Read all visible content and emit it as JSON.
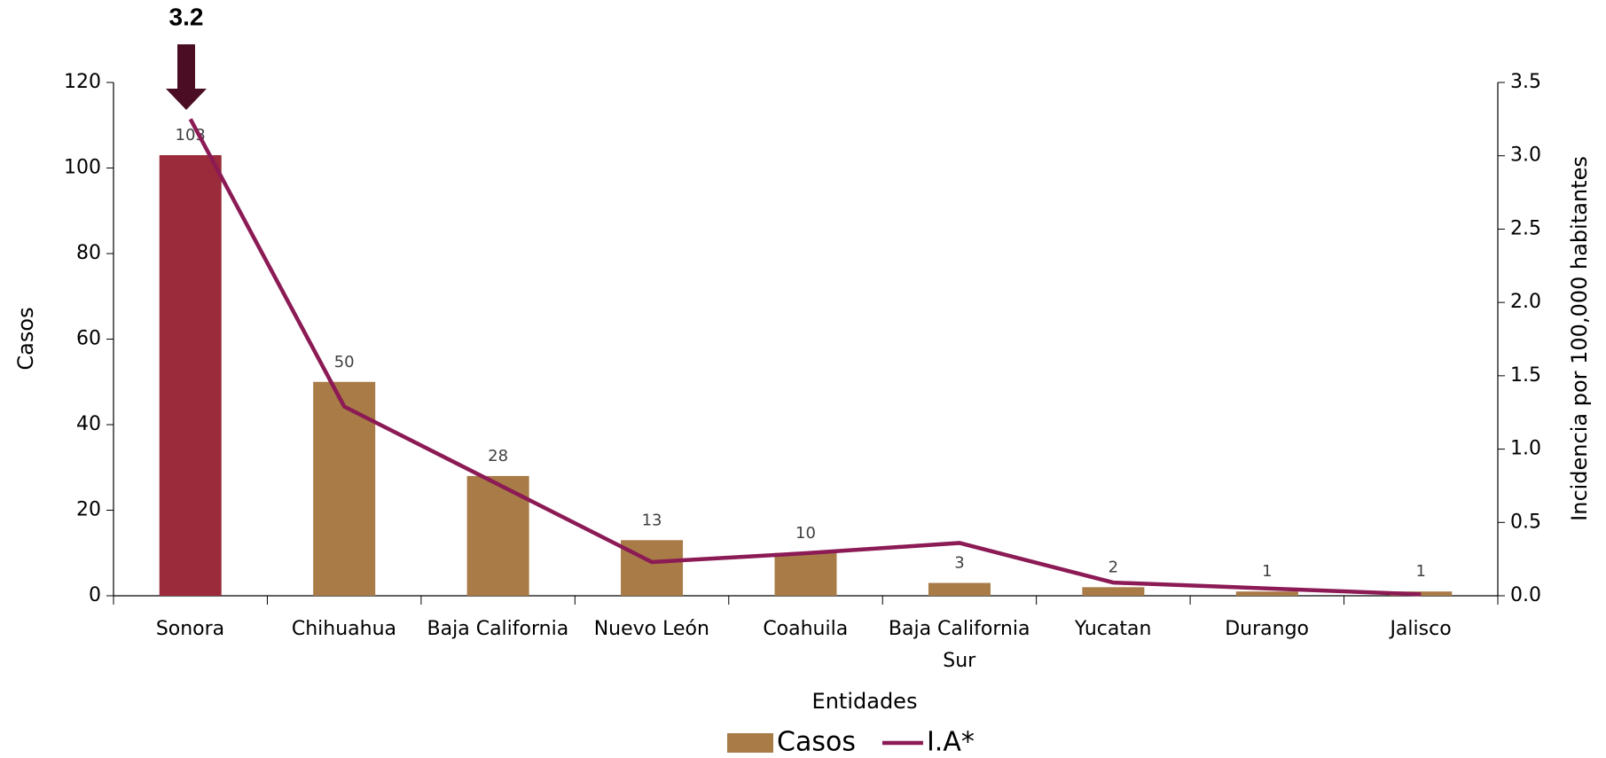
{
  "chart_data": {
    "type": "bar",
    "annotation": "3.2",
    "xlabel": "Entidades",
    "ylabel": "Casos",
    "y2label": "Incidencia por 100,000 habitantes",
    "categories": [
      "Sonora",
      "Chihuahua",
      "Baja California",
      "Nuevo León",
      "Coahuila",
      "Baja California Sur",
      "Yucatan",
      "Durango",
      "Jalisco"
    ],
    "series": [
      {
        "name": "Casos",
        "color": "#a87b47",
        "colors": [
          "#9b2b3b",
          "#a87b47",
          "#a87b47",
          "#a87b47",
          "#a87b47",
          "#a87b47",
          "#a87b47",
          "#a87b47",
          "#a87b47"
        ],
        "values": [
          103,
          50,
          28,
          13,
          10,
          3,
          2,
          1,
          1
        ]
      },
      {
        "name": "I.A*",
        "color": "#8b1a55",
        "axis": "y2",
        "values": [
          3.25,
          1.29,
          0.76,
          0.23,
          0.29,
          0.36,
          0.09,
          0.05,
          0.01
        ]
      }
    ],
    "ylim": [
      0,
      120
    ],
    "yticks": [
      0,
      20,
      40,
      60,
      80,
      100,
      120
    ],
    "y2lim": [
      0,
      3.5
    ],
    "y2ticks": [
      {
        "value": 0,
        "label": "0.0"
      },
      {
        "value": 0.5,
        "label": "0.5"
      },
      {
        "value": 1,
        "label": "1.0"
      },
      {
        "value": 1.5,
        "label": "1.5"
      },
      {
        "value": 2,
        "label": "2.0"
      },
      {
        "value": 2.5,
        "label": "2.5"
      },
      {
        "value": 3,
        "label": "3.0"
      },
      {
        "value": 3.5,
        "label": "3.5"
      }
    ],
    "grid": false,
    "legend": "bottom"
  }
}
